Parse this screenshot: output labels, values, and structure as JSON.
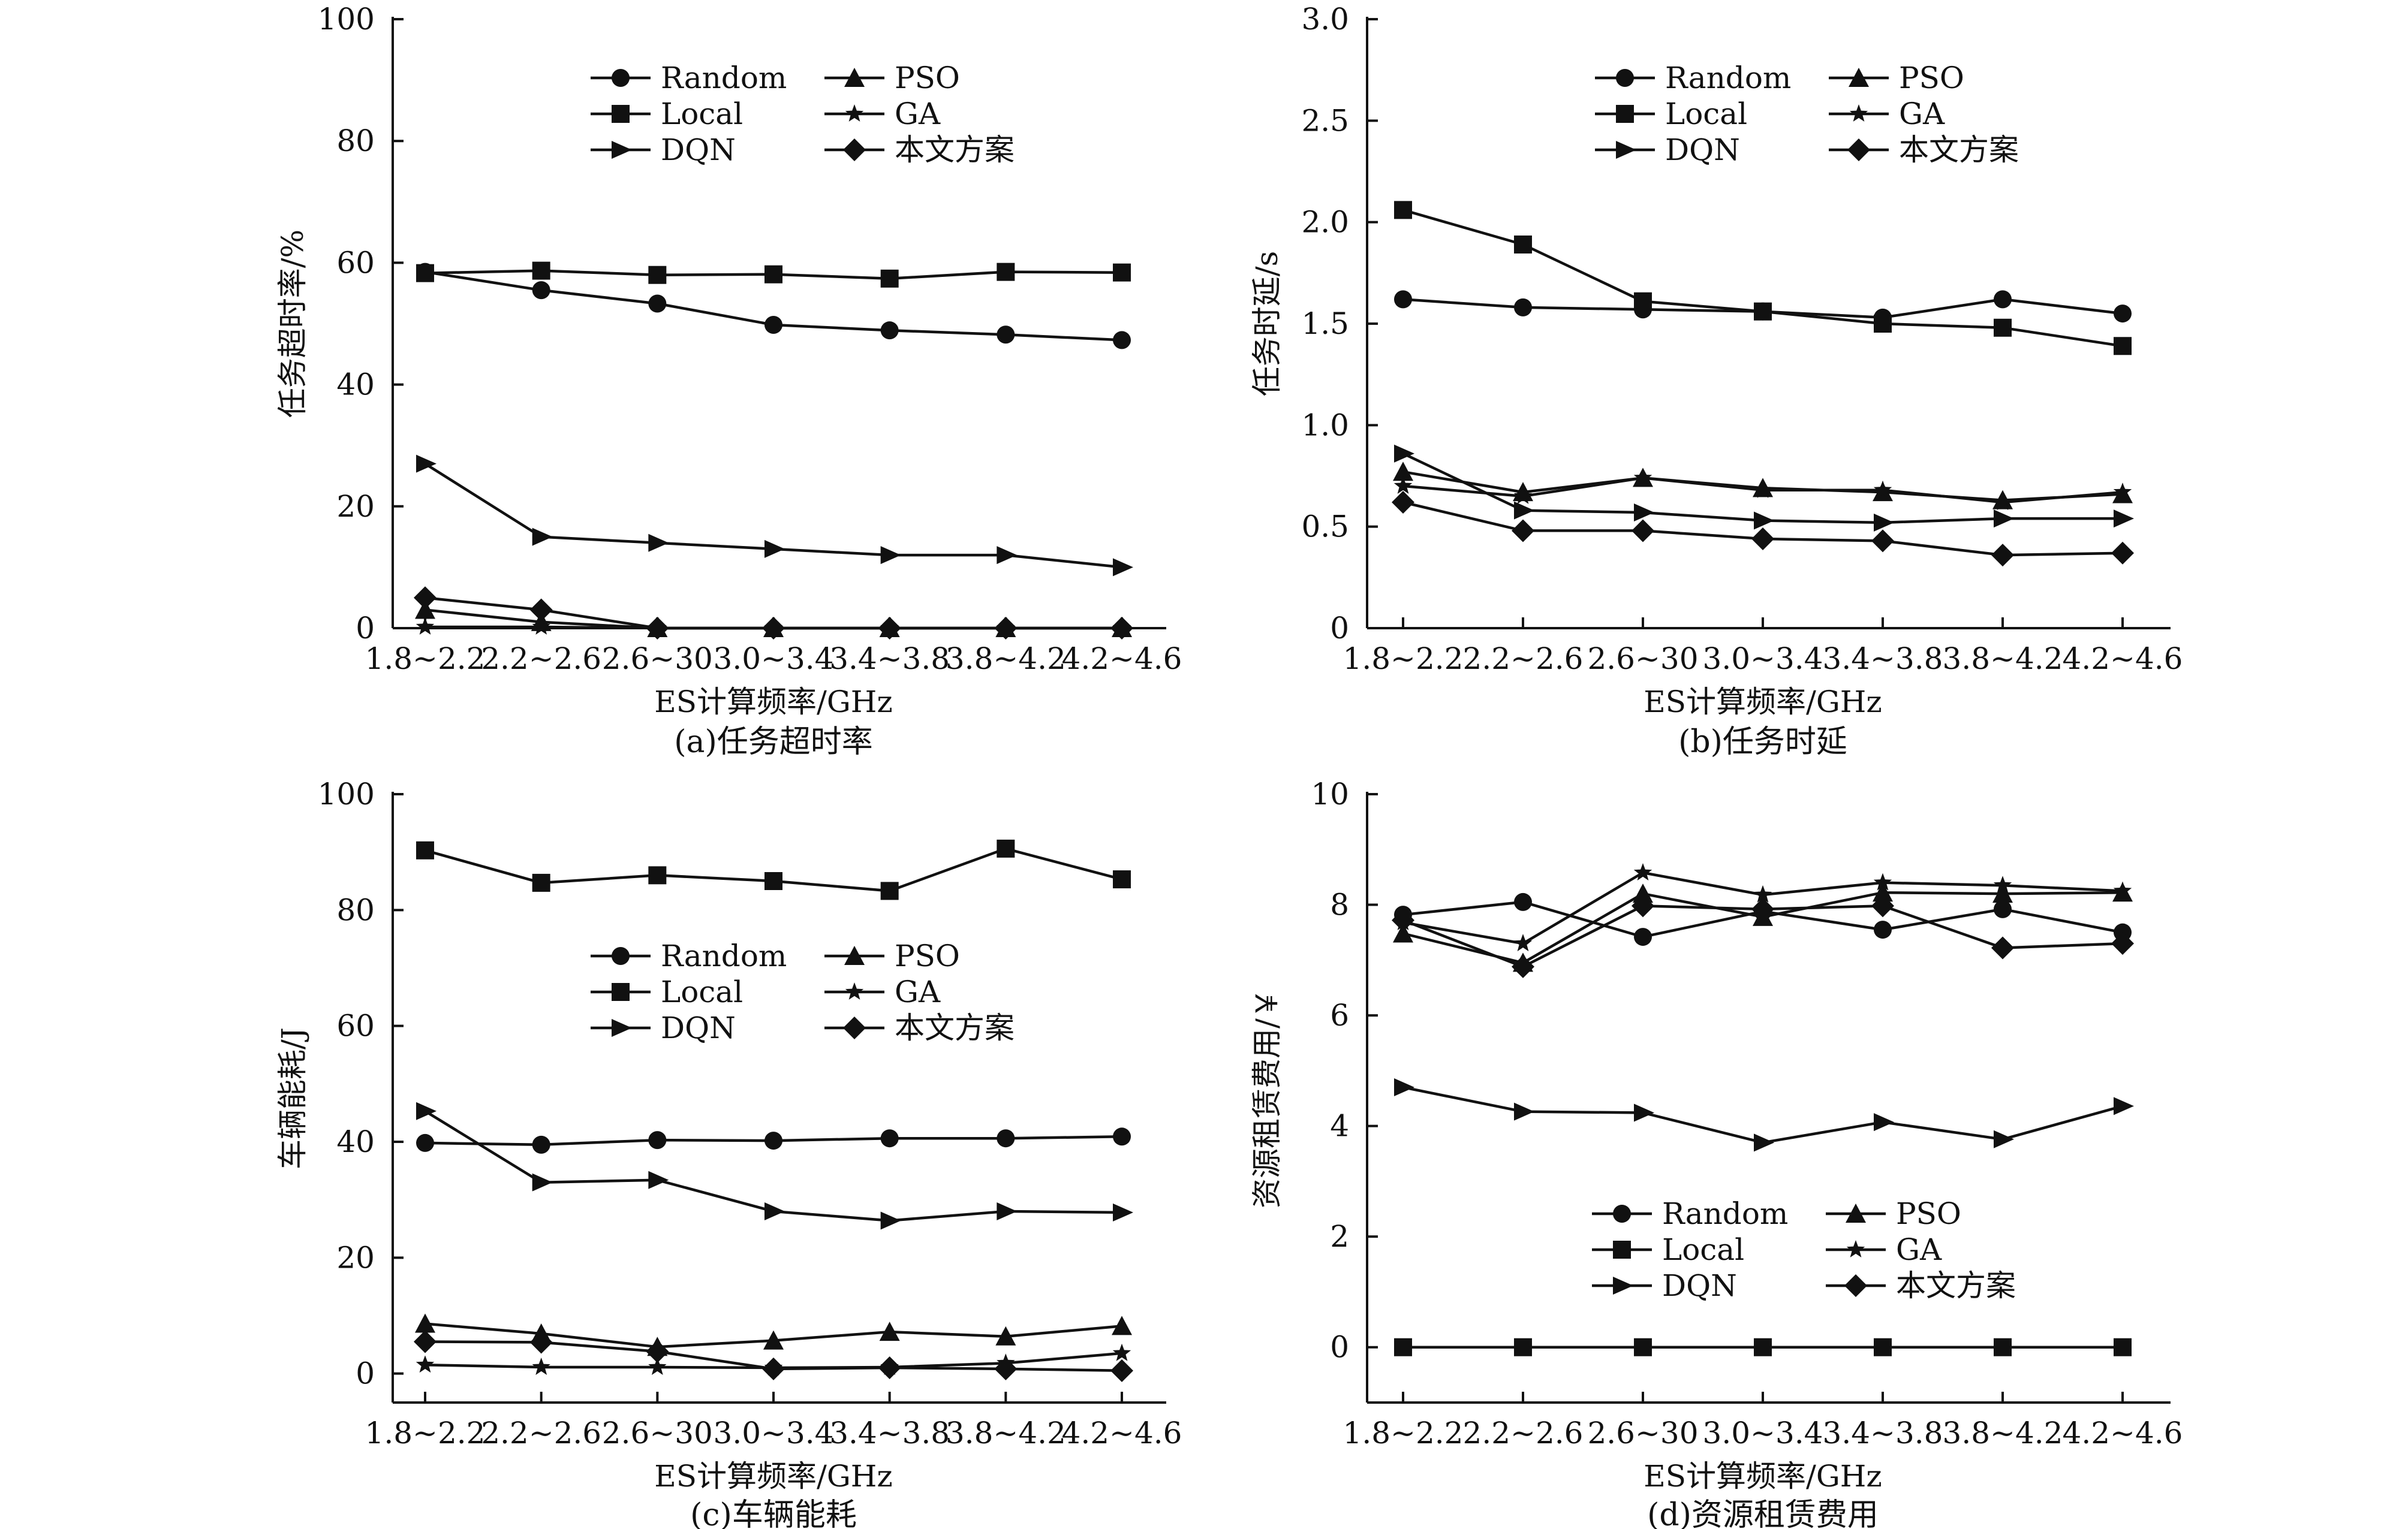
{
  "x_axis_label": "ES计算频率/GHz",
  "chart_data": [
    {
      "type": "line",
      "caption": "(a)任务超时率",
      "ylabel": "任务超时率/%",
      "xlabel": "ES计算频率/GHz",
      "categories": [
        "1.8~2.2",
        "2.2~2.6",
        "2.6~30",
        "3.0~3.4",
        "3.4~3.8",
        "3.8~4.2",
        "4.2~4.6"
      ],
      "ylim": [
        0,
        100
      ],
      "yticks": [
        0,
        20,
        40,
        60,
        80,
        100
      ],
      "ytick_labels": [
        "0",
        "20",
        "40",
        "60",
        "80",
        "100"
      ],
      "legend_position": "top-right",
      "series": [
        {
          "name": "Random",
          "marker": "circle",
          "values": [
            58.5,
            55.5,
            53.3,
            49.8,
            48.9,
            48.2,
            47.3
          ]
        },
        {
          "name": "Local",
          "marker": "square",
          "values": [
            58.3,
            58.7,
            58.0,
            58.1,
            57.4,
            58.5,
            58.4
          ]
        },
        {
          "name": "DQN",
          "marker": "triangle-right",
          "values": [
            27.0,
            15.0,
            14.0,
            13.0,
            12.0,
            12.0,
            10.0
          ]
        },
        {
          "name": "PSO",
          "marker": "triangle-up",
          "values": [
            3.0,
            1.0,
            0.0,
            0.0,
            0.0,
            0.0,
            0.0
          ]
        },
        {
          "name": "GA",
          "marker": "star",
          "values": [
            0.2,
            0.2,
            0.0,
            0.0,
            0.0,
            0.0,
            0.0
          ]
        },
        {
          "name": "本文方案",
          "marker": "diamond",
          "values": [
            5.0,
            3.0,
            0.0,
            0.0,
            0.0,
            0.0,
            0.0
          ]
        }
      ]
    },
    {
      "type": "line",
      "caption": "(b)任务时延",
      "ylabel": "任务时延/s",
      "xlabel": "ES计算频率/GHz",
      "categories": [
        "1.8~2.2",
        "2.2~2.6",
        "2.6~30",
        "3.0~3.4",
        "3.4~3.8",
        "3.8~4.2",
        "4.2~4.6"
      ],
      "ylim": [
        0,
        3.0
      ],
      "yticks": [
        0,
        0.5,
        1.0,
        1.5,
        2.0,
        2.5,
        3.0
      ],
      "ytick_labels": [
        "0",
        "0.5",
        "1.0",
        "1.5",
        "2.0",
        "2.5",
        "3.0"
      ],
      "legend_position": "top-right",
      "series": [
        {
          "name": "Random",
          "marker": "circle",
          "values": [
            1.62,
            1.58,
            1.57,
            1.56,
            1.53,
            1.62,
            1.55
          ]
        },
        {
          "name": "Local",
          "marker": "square",
          "values": [
            2.06,
            1.89,
            1.61,
            1.56,
            1.5,
            1.48,
            1.39
          ]
        },
        {
          "name": "DQN",
          "marker": "triangle-right",
          "values": [
            0.86,
            0.58,
            0.57,
            0.53,
            0.52,
            0.54,
            0.54
          ]
        },
        {
          "name": "PSO",
          "marker": "triangle-up",
          "values": [
            0.77,
            0.67,
            0.74,
            0.69,
            0.67,
            0.63,
            0.66
          ]
        },
        {
          "name": "GA",
          "marker": "star",
          "values": [
            0.7,
            0.65,
            0.74,
            0.68,
            0.68,
            0.62,
            0.67
          ]
        },
        {
          "name": "本文方案",
          "marker": "diamond",
          "values": [
            0.62,
            0.48,
            0.48,
            0.44,
            0.43,
            0.36,
            0.37
          ]
        }
      ]
    },
    {
      "type": "line",
      "caption": "(c)车辆能耗",
      "ylabel": "车辆能耗/J",
      "xlabel": "ES计算频率/GHz",
      "categories": [
        "1.8~2.2",
        "2.2~2.6",
        "2.6~30",
        "3.0~3.4",
        "3.4~3.8",
        "3.8~4.2",
        "4.2~4.6"
      ],
      "ylim": [
        -5,
        100
      ],
      "yticks": [
        0,
        20,
        40,
        60,
        80,
        100
      ],
      "ytick_labels": [
        "0",
        "20",
        "40",
        "60",
        "80",
        "100"
      ],
      "legend_position": "center-right",
      "series": [
        {
          "name": "Random",
          "marker": "circle",
          "values": [
            39.8,
            39.5,
            40.3,
            40.2,
            40.6,
            40.6,
            40.9
          ]
        },
        {
          "name": "Local",
          "marker": "square",
          "values": [
            90.3,
            84.7,
            86.0,
            85.0,
            83.3,
            90.6,
            85.3
          ]
        },
        {
          "name": "DQN",
          "marker": "triangle-right",
          "values": [
            45.3,
            33.0,
            33.4,
            28.0,
            26.4,
            28.0,
            27.8
          ]
        },
        {
          "name": "PSO",
          "marker": "triangle-up",
          "values": [
            8.6,
            6.9,
            4.6,
            5.7,
            7.2,
            6.4,
            8.2
          ]
        },
        {
          "name": "GA",
          "marker": "star",
          "values": [
            1.5,
            1.1,
            1.1,
            1.0,
            1.1,
            1.8,
            3.5
          ]
        },
        {
          "name": "本文方案",
          "marker": "diamond",
          "values": [
            5.5,
            5.4,
            3.8,
            0.8,
            1.0,
            0.8,
            0.5
          ]
        }
      ]
    },
    {
      "type": "line",
      "caption": "(d)资源租赁费用",
      "ylabel": "资源租赁费用/￥",
      "xlabel": "ES计算频率/GHz",
      "categories": [
        "1.8~2.2",
        "2.2~2.6",
        "2.6~30",
        "3.0~3.4",
        "3.4~3.8",
        "3.8~4.2",
        "4.2~4.6"
      ],
      "ylim": [
        -1,
        10
      ],
      "yticks": [
        0,
        2,
        4,
        6,
        8,
        10
      ],
      "ytick_labels": [
        "0",
        "2",
        "4",
        "6",
        "8",
        "10"
      ],
      "legend_position": "bottom-right",
      "series": [
        {
          "name": "Random",
          "marker": "circle",
          "values": [
            7.82,
            8.05,
            7.42,
            7.88,
            7.55,
            7.92,
            7.5
          ]
        },
        {
          "name": "Local",
          "marker": "square",
          "values": [
            0,
            0,
            0,
            0,
            0,
            0,
            0
          ]
        },
        {
          "name": "DQN",
          "marker": "triangle-right",
          "values": [
            4.7,
            4.26,
            4.24,
            3.7,
            4.07,
            3.76,
            4.36
          ]
        },
        {
          "name": "PSO",
          "marker": "triangle-up",
          "values": [
            7.48,
            6.95,
            8.2,
            7.78,
            8.22,
            8.2,
            8.22
          ]
        },
        {
          "name": "GA",
          "marker": "star",
          "values": [
            7.68,
            7.3,
            8.58,
            8.18,
            8.4,
            8.35,
            8.25
          ]
        },
        {
          "name": "本文方案",
          "marker": "diamond",
          "values": [
            7.72,
            6.88,
            7.98,
            7.92,
            7.98,
            7.22,
            7.3
          ]
        }
      ]
    }
  ]
}
